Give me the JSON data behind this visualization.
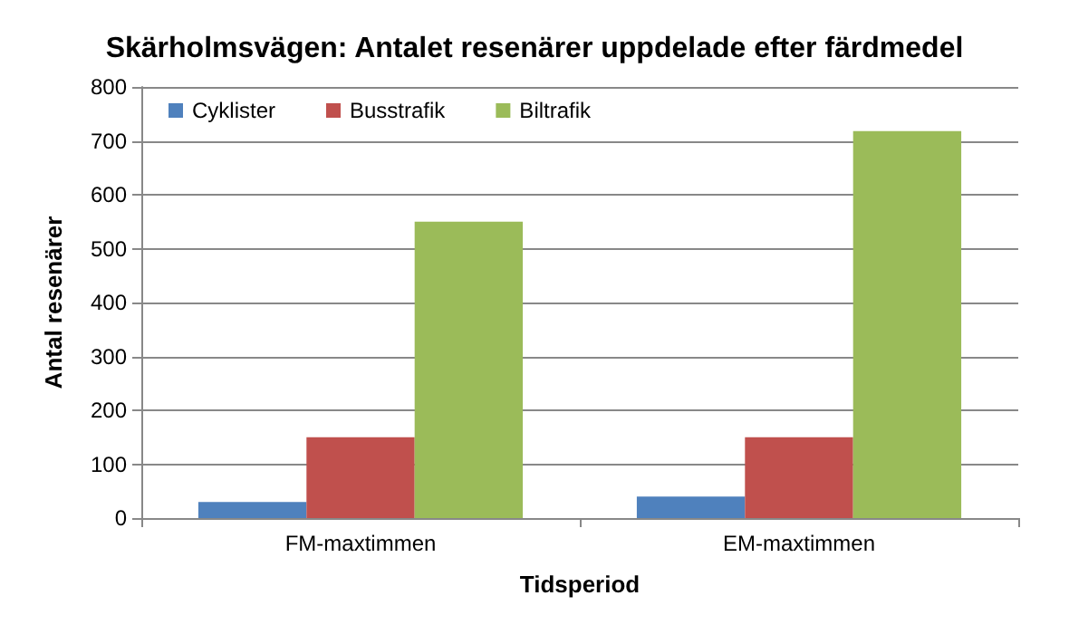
{
  "chart_data": {
    "type": "bar",
    "title": "Skärholmsvägen: Antalet resenärer uppdelade efter färdmedel",
    "xlabel": "Tidsperiod",
    "ylabel": "Antal resenärer",
    "categories": [
      "FM-maxtimmen",
      "EM-maxtimmen"
    ],
    "series": [
      {
        "name": "Cyklister",
        "color": "#4f81bd",
        "values": [
          30,
          40
        ]
      },
      {
        "name": "Busstrafik",
        "color": "#c0504d",
        "values": [
          150,
          150
        ]
      },
      {
        "name": "Biltrafik",
        "color": "#9bbb59",
        "values": [
          550,
          718
        ]
      }
    ],
    "ylim": [
      0,
      800
    ],
    "yticks": [
      0,
      100,
      200,
      300,
      400,
      500,
      600,
      700,
      800
    ],
    "grid": "y",
    "legend": "top left"
  }
}
